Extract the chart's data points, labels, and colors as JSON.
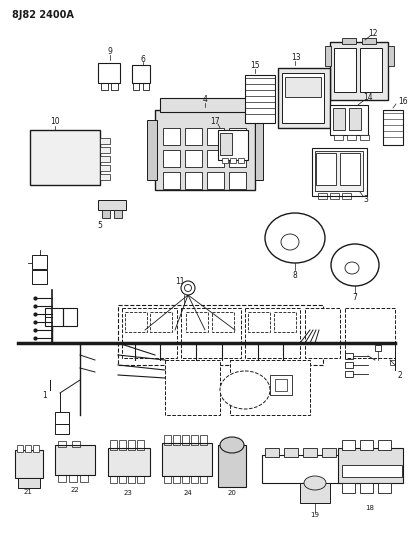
{
  "title": "8J82 2400A",
  "bg_color": "#ffffff",
  "lc": "#1a1a1a",
  "fig_width": 4.08,
  "fig_height": 5.33,
  "dpi": 100
}
